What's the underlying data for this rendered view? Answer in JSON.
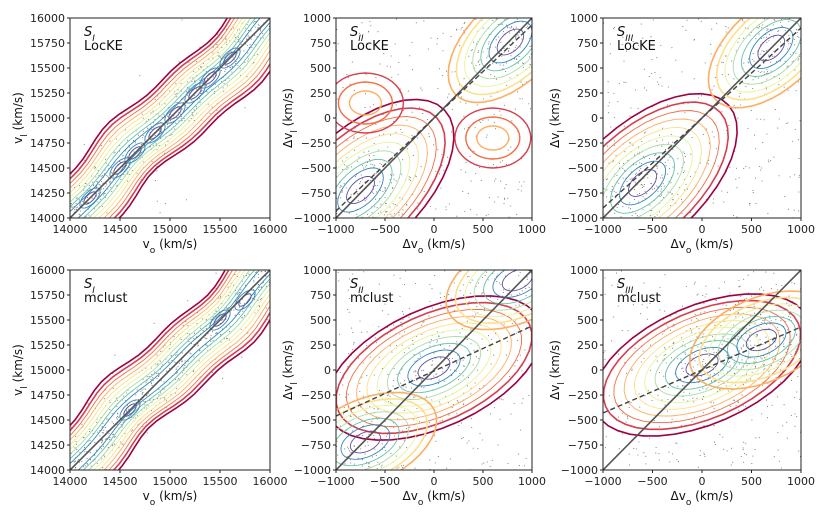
{
  "figure": {
    "description_units": "km/s"
  },
  "colors": {
    "contours": [
      "#9e0142",
      "#d53e4f",
      "#f46d43",
      "#fdae61",
      "#fee08b",
      "#e6f598",
      "#abdda4",
      "#66c2a5",
      "#3288bd",
      "#5e4fa2"
    ],
    "identity_line": "#555555",
    "regression_line": "#444444",
    "points": "#777777"
  },
  "chart_data": [
    {
      "id": "SI-LocKE",
      "type": "contour-scatter",
      "annotation": {
        "symbol": "S",
        "sub": "I",
        "method": "LocKE"
      },
      "xlabel": {
        "base": "v",
        "sub": "o",
        "unit": " (km/s)"
      },
      "ylabel": {
        "base": "v",
        "sub": "l",
        "unit": " (km/s)"
      },
      "xlim": [
        14000,
        16000
      ],
      "ylim": [
        14000,
        16000
      ],
      "xticks": [
        "14000",
        "14500",
        "15000",
        "15500",
        "16000"
      ],
      "yticks": [
        "14000",
        "14250",
        "14500",
        "14750",
        "15000",
        "15250",
        "15500",
        "15750",
        "16000"
      ],
      "identity_line": {
        "from": [
          14000,
          14000
        ],
        "to": [
          16000,
          16000
        ]
      },
      "modes": [
        [
          14200,
          14200
        ],
        [
          14500,
          14500
        ],
        [
          14650,
          14650
        ],
        [
          14850,
          14850
        ],
        [
          15050,
          15050
        ],
        [
          15250,
          15250
        ],
        [
          15400,
          15400
        ],
        [
          15600,
          15600
        ]
      ],
      "band_halfwidth": 330
    },
    {
      "id": "SII-LocKE",
      "type": "contour-scatter",
      "annotation": {
        "symbol": "S",
        "sub": "II",
        "method": "LocKE"
      },
      "xlabel": {
        "base": "Δv",
        "sub": "o",
        "unit": " (km/s)"
      },
      "ylabel": {
        "base": "Δv",
        "sub": "l",
        "unit": " (km/s)"
      },
      "xlim": [
        -1000,
        1000
      ],
      "ylim": [
        -1000,
        1000
      ],
      "xticks": [
        "−1000",
        "−500",
        "0",
        "500",
        "1000"
      ],
      "yticks": [
        "−1000",
        "−750",
        "−500",
        "−250",
        "0",
        "250",
        "500",
        "750",
        "1000"
      ],
      "identity_line": {
        "from": [
          -1000,
          -1000
        ],
        "to": [
          1000,
          1000
        ]
      },
      "regression_line": {
        "from": [
          -1000,
          -930
        ],
        "to": [
          1000,
          930
        ]
      },
      "modes": [
        [
          -750,
          -720
        ],
        [
          780,
          760
        ]
      ],
      "side_modes": [
        [
          -700,
          150
        ],
        [
          600,
          -200
        ]
      ]
    },
    {
      "id": "SIII-LocKE",
      "type": "contour-scatter",
      "annotation": {
        "symbol": "S",
        "sub": "III",
        "method": "LocKE"
      },
      "xlabel": {
        "base": "Δv",
        "sub": "o",
        "unit": " (km/s)"
      },
      "ylabel": {
        "base": "Δv",
        "sub": "l",
        "unit": " (km/s)"
      },
      "xlim": [
        -1000,
        1000
      ],
      "ylim": [
        -1000,
        1000
      ],
      "xticks": [
        "−1000",
        "−500",
        "0",
        "500",
        "1000"
      ],
      "yticks": [
        "−1000",
        "−750",
        "−500",
        "−250",
        "0",
        "250",
        "500",
        "750",
        "1000"
      ],
      "identity_line": {
        "from": [
          -1000,
          -1000
        ],
        "to": [
          1000,
          1000
        ]
      },
      "regression_line": {
        "from": [
          -1000,
          -900
        ],
        "to": [
          1000,
          900
        ]
      },
      "modes": [
        [
          -600,
          -650
        ],
        [
          700,
          700
        ]
      ]
    },
    {
      "id": "SI-mclust",
      "type": "contour-scatter",
      "annotation": {
        "symbol": "S",
        "sub": "I",
        "method": "mclust"
      },
      "xlabel": {
        "base": "v",
        "sub": "o",
        "unit": " (km/s)"
      },
      "ylabel": {
        "base": "v",
        "sub": "l",
        "unit": " (km/s)"
      },
      "xlim": [
        14000,
        16000
      ],
      "ylim": [
        14000,
        16000
      ],
      "xticks": [
        "14000",
        "14500",
        "15000",
        "15500",
        "16000"
      ],
      "yticks": [
        "14000",
        "14250",
        "14500",
        "14750",
        "15000",
        "15250",
        "15500",
        "15750",
        "16000"
      ],
      "identity_line": {
        "from": [
          14000,
          14000
        ],
        "to": [
          16000,
          16000
        ]
      },
      "modes": [
        [
          14600,
          14600
        ],
        [
          15500,
          15500
        ],
        [
          15750,
          15700
        ]
      ],
      "band_halfwidth": 330
    },
    {
      "id": "SII-mclust",
      "type": "contour-scatter",
      "annotation": {
        "symbol": "S",
        "sub": "II",
        "method": "mclust"
      },
      "xlabel": {
        "base": "Δv",
        "sub": "o",
        "unit": " (km/s)"
      },
      "ylabel": {
        "base": "Δv",
        "sub": "l",
        "unit": " (km/s)"
      },
      "xlim": [
        -1000,
        1000
      ],
      "ylim": [
        -1000,
        1000
      ],
      "xticks": [
        "−1000",
        "−500",
        "0",
        "500",
        "1000"
      ],
      "yticks": [
        "−1000",
        "−750",
        "−500",
        "−250",
        "0",
        "250",
        "500",
        "750",
        "1000"
      ],
      "identity_line": {
        "from": [
          -1000,
          -1000
        ],
        "to": [
          1000,
          1000
        ]
      },
      "regression_line": {
        "from": [
          -1000,
          -460
        ],
        "to": [
          1000,
          440
        ]
      },
      "modes": [
        [
          0,
          20
        ],
        [
          -700,
          -720
        ],
        [
          850,
          900
        ]
      ]
    },
    {
      "id": "SIII-mclust",
      "type": "contour-scatter",
      "annotation": {
        "symbol": "S",
        "sub": "III",
        "method": "mclust"
      },
      "xlabel": {
        "base": "Δv",
        "sub": "o",
        "unit": " (km/s)"
      },
      "ylabel": {
        "base": "Δv",
        "sub": "l",
        "unit": " (km/s)"
      },
      "xlim": [
        -1000,
        1000
      ],
      "ylim": [
        -1000,
        1000
      ],
      "xticks": [
        "−1000",
        "−500",
        "0",
        "500",
        "1000"
      ],
      "yticks": [
        "−1000",
        "−750",
        "−500",
        "−250",
        "0",
        "250",
        "500",
        "750",
        "1000"
      ],
      "identity_line": {
        "from": [
          -1000,
          -1000
        ],
        "to": [
          1000,
          1000
        ]
      },
      "regression_line": {
        "from": [
          -1000,
          -430
        ],
        "to": [
          1000,
          430
        ]
      },
      "modes": [
        [
          0,
          50
        ],
        [
          600,
          300
        ]
      ]
    }
  ]
}
